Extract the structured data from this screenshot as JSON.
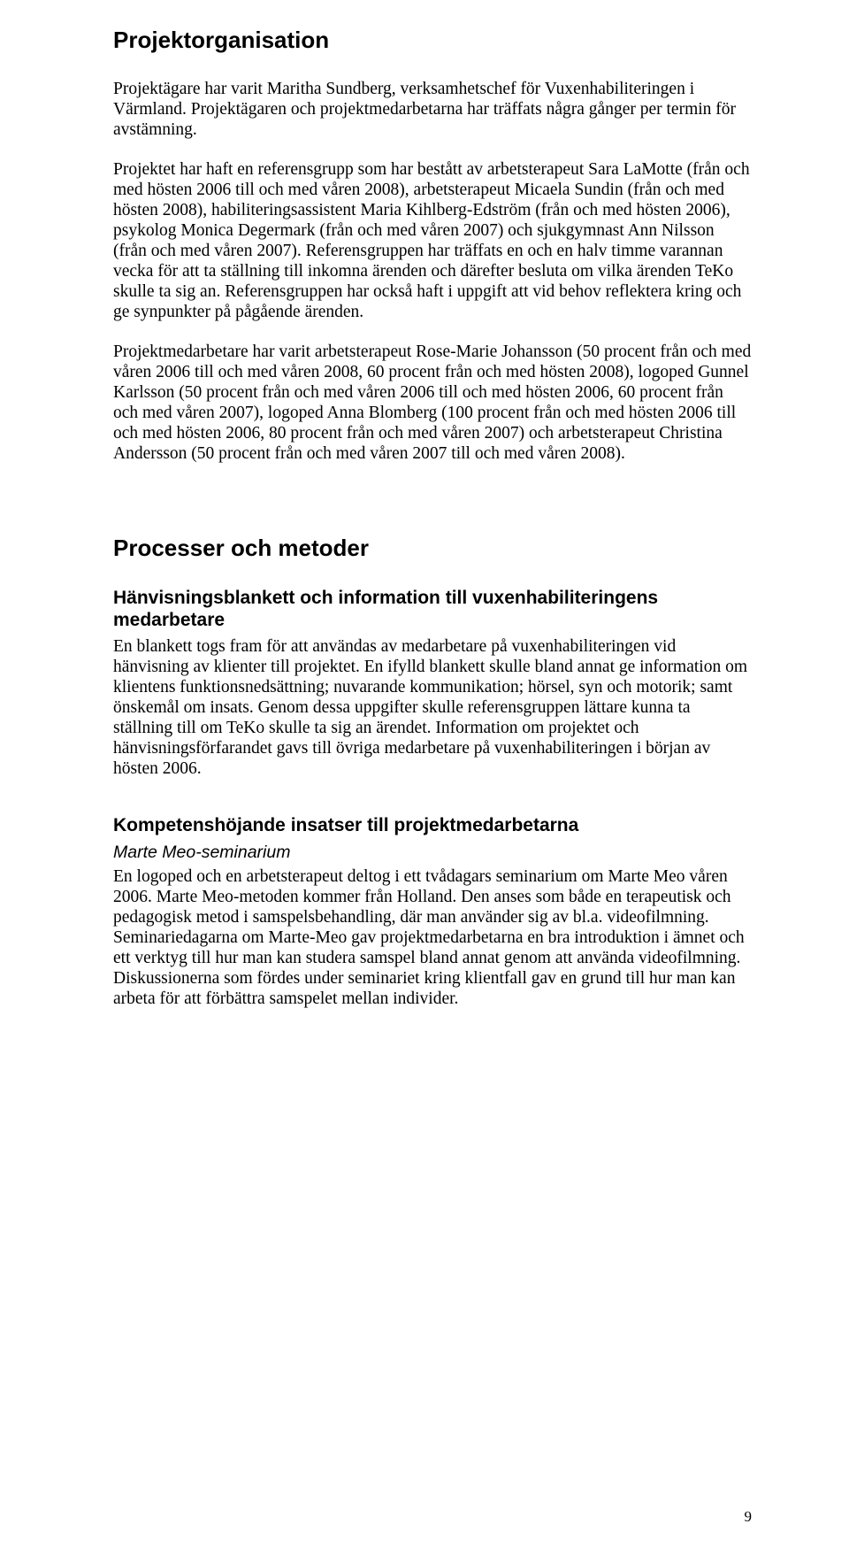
{
  "page_number": "9",
  "heading1": "Projektorganisation",
  "para1": "Projektägare har varit Maritha Sundberg, verksamhetschef för Vuxenhabiliteringen i Värmland. Projektägaren och projektmedarbetarna har träffats några gånger per termin för avstämning.",
  "para2": "Projektet har haft en referensgrupp som har bestått av arbetsterapeut Sara LaMotte (från och med hösten 2006 till och med våren 2008), arbetsterapeut Micaela Sundin (från och med hösten 2008), habiliteringsassistent Maria Kihlberg-Edström (från och med hösten 2006), psykolog Monica Degermark (från och med våren 2007) och sjukgymnast Ann Nilsson (från och med våren 2007). Referensgruppen har träffats en och en halv timme varannan vecka för att ta ställning till inkomna ärenden och därefter besluta om vilka ärenden TeKo skulle ta sig an. Referensgruppen har också haft i uppgift att vid behov reflektera kring och ge synpunkter på pågående ärenden.",
  "para3": "Projektmedarbetare har varit arbetsterapeut Rose-Marie Johansson (50 procent från och med våren 2006 till och med våren 2008, 60 procent från och med hösten 2008), logoped Gunnel Karlsson (50 procent från och med våren 2006 till och med hösten 2006, 60 procent från och med våren 2007), logoped Anna Blomberg (100 procent från och med hösten 2006 till och med hösten 2006, 80 procent från och med våren 2007) och arbetsterapeut Christina Andersson (50 procent från och med våren 2007 till och med våren 2008).",
  "heading2": "Processer och metoder",
  "sub1_heading": "Hänvisningsblankett och information till vuxenhabiliteringens medarbetare",
  "sub1_para": "En blankett togs fram för att användas av medarbetare på vuxenhabiliteringen vid hänvisning av klienter till projektet. En ifylld blankett skulle bland annat ge information om klientens funktionsnedsättning; nuvarande kommunikation; hörsel, syn och motorik; samt önskemål om insats. Genom dessa uppgifter skulle referensgruppen lättare kunna ta ställning till om TeKo skulle ta sig an ärendet. Information om projektet och hänvisningsförfarandet gavs till övriga medarbetare på vuxenhabiliteringen i början av hösten 2006.",
  "sub2_heading": "Kompetenshöjande insatser till projektmedarbetarna",
  "sub2_sub_heading": "Marte Meo-seminarium",
  "sub2_para": "En logoped och en arbetsterapeut deltog i ett tvådagars seminarium om Marte Meo våren 2006. Marte Meo-metoden kommer från Holland. Den anses som både en terapeutisk och pedagogisk metod i samspelsbehandling, där man använder sig av bl.a. videofilmning. Seminariedagarna om Marte-Meo gav projektmedarbetarna en bra introduktion i ämnet och ett verktyg till hur man kan studera samspel bland annat genom att använda videofilmning. Diskussionerna som fördes under seminariet kring klientfall gav en grund till hur man kan arbeta för att förbättra samspelet mellan individer."
}
